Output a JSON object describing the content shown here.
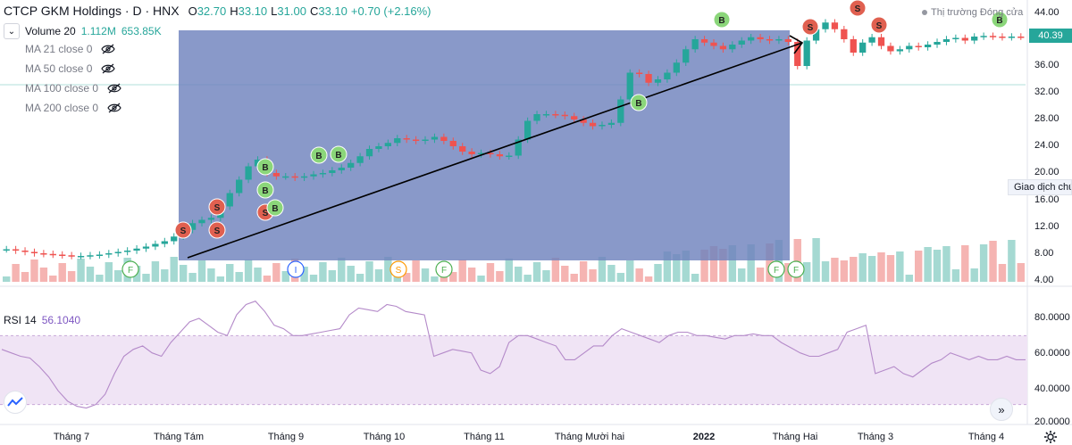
{
  "header": {
    "title": "CTCP GKM Holdings · D · HNX",
    "ohlc": [
      {
        "k": "O",
        "v": "32.70"
      },
      {
        "k": "H",
        "v": "33.10"
      },
      {
        "k": "L",
        "v": "31.00"
      },
      {
        "k": "C",
        "v": "33.10"
      },
      {
        "k": "",
        "v": "+0.70 (+2.16%)"
      }
    ]
  },
  "market_status": "Thị trường Đóng cửa",
  "volume_indicator": {
    "label": "Volume 20",
    "value1": "1.112M",
    "value2": "653.85K"
  },
  "ma_indicators": [
    {
      "label": "MA 21 close 0"
    },
    {
      "label": "MA 50 close 0"
    },
    {
      "label": "MA 100 close 0"
    },
    {
      "label": "MA 200 close 0"
    }
  ],
  "last_price": "40.39",
  "tooltip": "Giao dịch chứ",
  "rsi": {
    "label": "RSI 14",
    "value": "56.1040"
  },
  "colors": {
    "up": "#26a69a",
    "down": "#ef5350",
    "rect_fill": "#6f83bd",
    "rsi_line": "#b48ac9",
    "rsi_band": "#f0e4f5",
    "buy": "#8bd67a",
    "sell": "#e06050"
  },
  "chart_data": {
    "type": "candlestick",
    "price_axis": {
      "ticks": [
        "44.00",
        "40.00",
        "36.00",
        "32.00",
        "28.00",
        "24.00",
        "20.00",
        "16.00",
        "12.00",
        "8.00",
        "4.00"
      ],
      "range": [
        4,
        44
      ]
    },
    "rsi_axis": {
      "ticks": [
        "80.0000",
        "60.0000",
        "40.0000",
        "20.0000"
      ],
      "range": [
        20,
        80
      ],
      "band": [
        30,
        70
      ]
    },
    "time_labels": [
      {
        "label": "Tháng 7",
        "bold": false
      },
      {
        "label": "Tháng Tám",
        "bold": false
      },
      {
        "label": "Tháng 9",
        "bold": false
      },
      {
        "label": "Tháng 10",
        "bold": false
      },
      {
        "label": "Tháng 11",
        "bold": false
      },
      {
        "label": "Tháng Mười hai",
        "bold": false
      },
      {
        "label": "2022",
        "bold": true
      },
      {
        "label": "Tháng Hai",
        "bold": false
      },
      {
        "label": "Tháng 3",
        "bold": false
      },
      {
        "label": "Tháng 4",
        "bold": false
      }
    ],
    "price_path": [
      8.6,
      8.4,
      8.2,
      8.0,
      7.9,
      7.8,
      7.7,
      7.6,
      7.6,
      7.7,
      7.8,
      8.0,
      8.2,
      8.4,
      8.7,
      9.0,
      9.4,
      9.8,
      10.5,
      11.5,
      12.5,
      13.0,
      13.3,
      15.0,
      17.0,
      19.0,
      21.0,
      22.0,
      20.0,
      19.5,
      19.5,
      19.3,
      19.5,
      19.8,
      20.0,
      20.4,
      20.8,
      21.5,
      22.5,
      23.6,
      24.0,
      24.5,
      25.2,
      25.0,
      24.8,
      25.0,
      25.4,
      24.8,
      24.0,
      23.2,
      22.8,
      23.0,
      22.8,
      22.5,
      22.6,
      25.0,
      27.8,
      28.8,
      28.8,
      28.7,
      28.5,
      28.0,
      27.5,
      27.0,
      27.2,
      27.5,
      31.0,
      35.0,
      34.8,
      33.5,
      34.0,
      35.0,
      36.5,
      38.5,
      40.0,
      39.5,
      39.0,
      38.5,
      39.2,
      39.8,
      40.3,
      40.0,
      39.8,
      40.0,
      39.6,
      36.0,
      39.8,
      41.5,
      42.5,
      41.5,
      40.0,
      38.0,
      39.5,
      40.3,
      39.0,
      38.2,
      38.5,
      39.0,
      38.8,
      39.2,
      39.6,
      40.0,
      40.2,
      39.8,
      40.4,
      40.5,
      40.4,
      40.3,
      40.4,
      40.39
    ],
    "rsi_path": [
      62,
      60,
      58,
      57,
      52,
      46,
      38,
      32,
      29,
      28,
      30,
      36,
      48,
      58,
      62,
      64,
      60,
      58,
      66,
      72,
      78,
      80,
      76,
      72,
      70,
      82,
      88,
      90,
      84,
      76,
      74,
      70,
      70,
      71,
      72,
      73,
      74,
      82,
      86,
      85,
      84,
      88,
      87,
      84,
      83,
      82,
      58,
      60,
      62,
      61,
      60,
      50,
      48,
      52,
      66,
      70,
      70,
      68,
      66,
      64,
      56,
      56,
      60,
      64,
      64,
      70,
      74,
      72,
      70,
      68,
      66,
      70,
      72,
      72,
      70,
      70,
      69,
      68,
      70,
      70,
      71,
      70,
      70,
      66,
      63,
      60,
      58,
      58,
      60,
      62,
      72,
      74,
      76,
      48,
      50,
      52,
      48,
      46,
      50,
      54,
      56,
      60,
      58,
      56,
      58,
      56,
      56,
      58,
      56,
      56
    ]
  },
  "signals": [
    {
      "label": "S"
    },
    {
      "label": "S"
    },
    {
      "label": "S"
    },
    {
      "label": "S"
    },
    {
      "label": "B"
    },
    {
      "label": "B"
    },
    {
      "label": "B"
    },
    {
      "label": "B"
    },
    {
      "label": "B"
    },
    {
      "label": "B"
    },
    {
      "label": "B"
    },
    {
      "label": "S"
    },
    {
      "label": "S"
    },
    {
      "label": "S"
    },
    {
      "label": "B"
    }
  ],
  "events": [
    {
      "label": "F"
    },
    {
      "label": "I"
    },
    {
      "label": "S"
    },
    {
      "label": "F"
    },
    {
      "label": "F"
    },
    {
      "label": "F"
    }
  ]
}
